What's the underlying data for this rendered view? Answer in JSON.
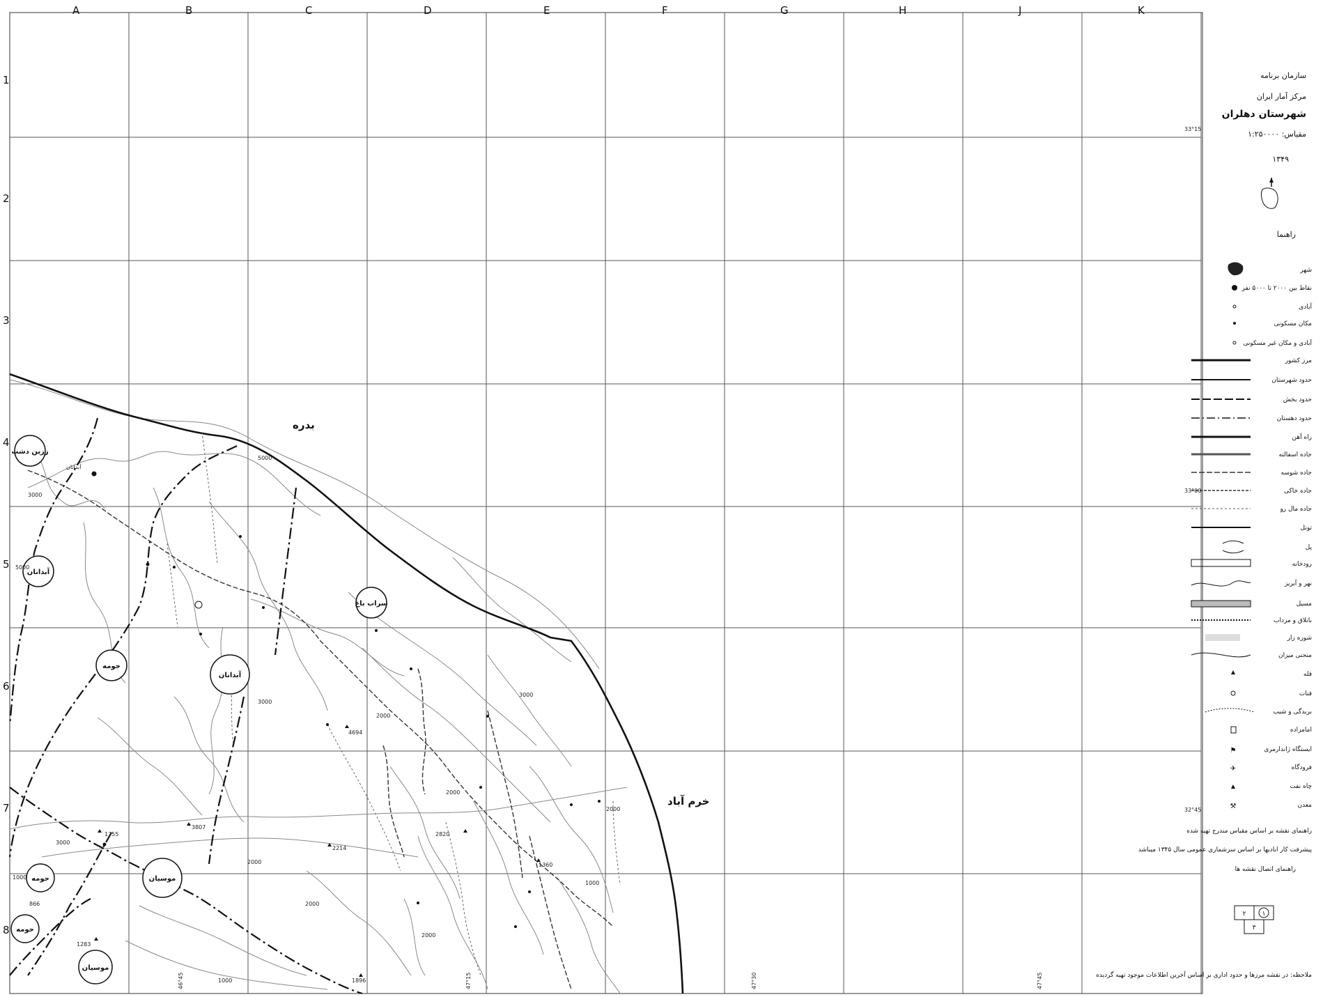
{
  "grid": {
    "columns": [
      "A",
      "B",
      "C",
      "D",
      "E",
      "F",
      "G",
      "H",
      "J",
      "K"
    ],
    "rows": [
      "1",
      "2",
      "3",
      "4",
      "5",
      "6",
      "7",
      "8"
    ]
  },
  "coords": {
    "top": "33°15",
    "mid": "33°00",
    "low": "32°45",
    "bottom_a": "46°45",
    "bottom_b": "47°15",
    "bottom_c": "47°30",
    "bottom_d": "47°45"
  },
  "title_block": {
    "org_line1": "سازمان برنامه",
    "org_line2": "مرکز آمار ایران",
    "map_title": "شهرستان دهلران",
    "scale": "مقیاس: ۱:۲۵۰۰۰۰",
    "year": "۱۳۴۹"
  },
  "legend": {
    "heading": "راهنما",
    "items": [
      "شهر",
      "نقاط بین ۲۰۰۰ تا ۵۰۰۰ نفر",
      "آبادی",
      "مکان مسکونی",
      "آبادی و مکان غیر مسکونی",
      "مرز کشور",
      "حدود شهرستان",
      "حدود بخش",
      "حدود دهستان",
      "راه آهن",
      "جاده اسفالته",
      "جاده شوسه",
      "جاده خاکی",
      "جاده مال رو",
      "تونل",
      "پل",
      "رودخانه",
      "نهر و آبریز",
      "مسیل",
      "باتلاق و مرداب",
      "شوره زار",
      "منحنی میزان",
      "قله",
      "قنات",
      "بریدگی و شیب",
      "امامزاده",
      "ایستگاه ژاندارمری",
      "فرودگاه",
      "چاه نفت",
      "معدن"
    ],
    "notes": [
      "راهنمای نقشه بر اساس مقیاس مندرج تهیه شده",
      "پیشرفت کار ابادیها بر اساس سرشماری عمومی سال ۱۳۴۵ میباشد",
      "راهنمای اتصال نقشه ها"
    ],
    "sheet_index": [
      "۱",
      "۲",
      "۳"
    ],
    "footer": "ملاحظه: در نقشه مرزها و حدود اداری بر اساس آخرین اطلاعات موجود تهیه گردیده"
  },
  "map_labels": {
    "region_badreh": "بدره",
    "region_khorramabad": "خرم آباد",
    "circle_zarin_dasht": "زرین دشت",
    "circle_abdanan_w": "آبدانان",
    "circle_abdanan_c": "آبدانان",
    "circle_hoomeh_north": "جومه",
    "circle_sarab_bagh": "سراب باغ",
    "circle_dehloran": "موسیان",
    "circle_hoomeh_s": "حومه",
    "circle_hoomeh_s2": "حومه",
    "circle_mousian": "موسیان",
    "town_abdanan": "آبدانان"
  },
  "elevations": [
    "3000",
    "3000",
    "2000",
    "2000",
    "3000",
    "3000",
    "2000",
    "1000",
    "1000",
    "2000",
    "2000",
    "2000",
    "2820",
    "1360",
    "4694",
    "3807",
    "2214",
    "1755",
    "1283",
    "1896",
    "866",
    "5000",
    "5000",
    "1000"
  ]
}
